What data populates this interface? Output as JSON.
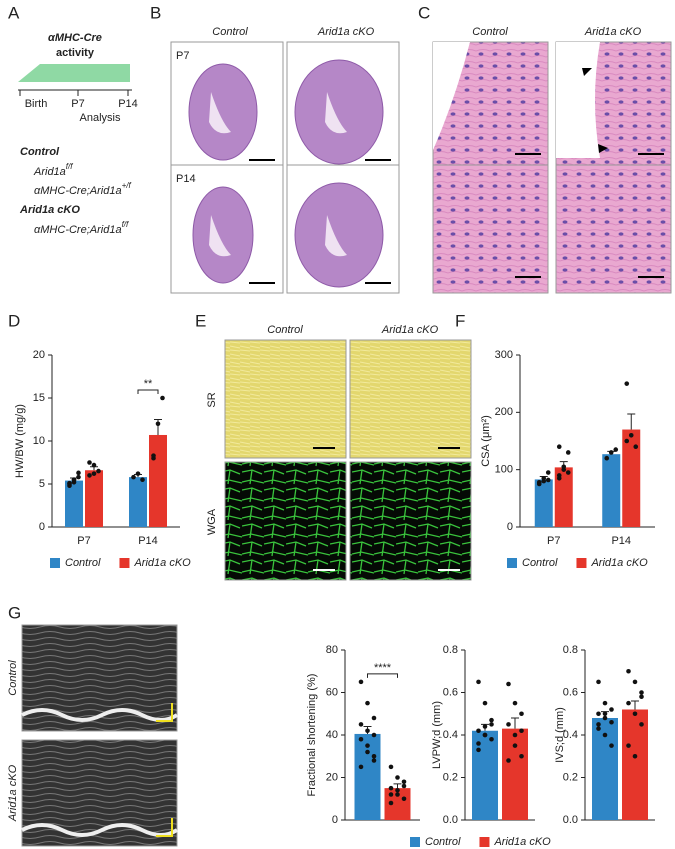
{
  "panels": {
    "letters": [
      "A",
      "B",
      "C",
      "D",
      "E",
      "F",
      "G"
    ],
    "A": {
      "cre": "αMHC-Cre",
      "activity": "activity",
      "timeline": [
        "Birth",
        "P7",
        "P14"
      ],
      "analysis": "Analysis",
      "groups": [
        {
          "name": "Control",
          "genotypes": [
            {
              "text": "Arid1a",
              "sup": "f/f"
            },
            {
              "text": "αMHC-Cre;Arid1a",
              "sup": "+/f"
            }
          ]
        },
        {
          "name": "Arid1a cKO",
          "genotypes": [
            {
              "text": "αMHC-Cre;Arid1a",
              "sup": "f/f"
            }
          ]
        }
      ]
    },
    "B": {
      "columns": [
        "Control",
        "Arid1a cKO"
      ],
      "rows": [
        "P7",
        "P14"
      ]
    },
    "C": {
      "columns": [
        "Control",
        "Arid1a cKO"
      ]
    },
    "E": {
      "columns": [
        "Control",
        "Arid1a cKO"
      ],
      "rows": [
        "SR",
        "WGA"
      ]
    },
    "G": {
      "rows": [
        "Control",
        "Arid1a cKO"
      ]
    }
  },
  "chart_data": [
    {
      "type": "bar",
      "ylabel": "HW/BW (mg/g)",
      "categories": [
        "P7",
        "P14"
      ],
      "ylim": [
        0,
        20
      ],
      "yticks": [
        0,
        5,
        10,
        15,
        20
      ],
      "annotation": "**",
      "series": [
        {
          "name": "Control",
          "color": "#2f86c6",
          "values": [
            5.4,
            5.8
          ],
          "errors": [
            0.3,
            0.3
          ],
          "points": [
            [
              5.0,
              5.5,
              6.3,
              4.8,
              5.2,
              5.8,
              5.1,
              5.5
            ],
            [
              5.8,
              6.2,
              5.5
            ]
          ]
        },
        {
          "name": "Arid1a cKO",
          "color": "#e5362b",
          "values": [
            6.6,
            10.7
          ],
          "errors": [
            0.4,
            1.8
          ],
          "points": [
            [
              6.0,
              7.2,
              6.5,
              7.5,
              6.2
            ],
            [
              8.0,
              12.0,
              15.0,
              8.3
            ]
          ]
        }
      ]
    },
    {
      "type": "bar",
      "ylabel": "CSA (μm²)",
      "categories": [
        "P7",
        "P14"
      ],
      "ylim": [
        0,
        300
      ],
      "yticks": [
        0,
        100,
        200,
        300
      ],
      "series": [
        {
          "name": "Control",
          "color": "#2f86c6",
          "values": [
            83,
            127
          ],
          "errors": [
            5,
            5
          ],
          "points": [
            [
              75,
              80,
              95,
              78,
              85,
              82
            ],
            [
              120,
              130,
              135
            ]
          ]
        },
        {
          "name": "Arid1a cKO",
          "color": "#e5362b",
          "values": [
            104,
            170
          ],
          "errors": [
            10,
            27
          ],
          "points": [
            [
              90,
              100,
              130,
              140,
              105,
              95,
              85
            ],
            [
              250,
              160,
              140,
              150
            ]
          ]
        }
      ]
    },
    {
      "type": "bar",
      "ylabel": "Fractional shortening (%)",
      "categories": [
        null
      ],
      "ylim": [
        0,
        80
      ],
      "yticks": [
        0,
        20,
        40,
        60,
        80
      ],
      "annotation": "****",
      "series": [
        {
          "name": "Control",
          "color": "#2f86c6",
          "values": [
            40.5
          ],
          "errors": [
            3.5
          ],
          "points": [
            [
              65,
              55,
              48,
              45,
              42,
              40,
              38,
              35,
              30,
              25,
              32,
              28
            ]
          ]
        },
        {
          "name": "Arid1a cKO",
          "color": "#e5362b",
          "values": [
            15
          ],
          "errors": [
            2
          ],
          "points": [
            [
              25,
              20,
              18,
              15,
              12,
              10,
              8,
              14,
              16,
              12
            ]
          ]
        }
      ]
    },
    {
      "type": "bar",
      "ylabel": "LVPW;d (mm)",
      "categories": [
        null
      ],
      "ylim": [
        0,
        0.8
      ],
      "yticks": [
        {
          "value": 0,
          "label": "0.0"
        },
        0.2,
        0.4,
        0.6,
        0.8
      ],
      "series": [
        {
          "color": "#2f86c6",
          "values": [
            0.42
          ],
          "errors": [
            0.03
          ],
          "points": [
            [
              0.65,
              0.55,
              0.45,
              0.42,
              0.4,
              0.38,
              0.36,
              0.44,
              0.47,
              0.33,
              0.4
            ]
          ]
        },
        {
          "color": "#e5362b",
          "values": [
            0.43
          ],
          "errors": [
            0.05
          ],
          "points": [
            [
              0.64,
              0.55,
              0.5,
              0.45,
              0.4,
              0.3,
              0.28,
              0.35,
              0.42
            ]
          ]
        }
      ]
    },
    {
      "type": "bar",
      "ylabel": "IVS;d (mm)",
      "categories": [
        null
      ],
      "ylim": [
        0,
        0.8
      ],
      "yticks": [
        {
          "value": 0,
          "label": "0.0"
        },
        0.2,
        0.4,
        0.6,
        0.8
      ],
      "series": [
        {
          "color": "#2f86c6",
          "values": [
            0.48
          ],
          "errors": [
            0.03
          ],
          "points": [
            [
              0.65,
              0.55,
              0.52,
              0.5,
              0.48,
              0.46,
              0.45,
              0.4,
              0.35,
              0.43,
              0.5
            ]
          ]
        },
        {
          "color": "#e5362b",
          "values": [
            0.52
          ],
          "errors": [
            0.04
          ],
          "points": [
            [
              0.7,
              0.65,
              0.6,
              0.55,
              0.5,
              0.45,
              0.35,
              0.3,
              0.58
            ]
          ]
        }
      ]
    }
  ]
}
